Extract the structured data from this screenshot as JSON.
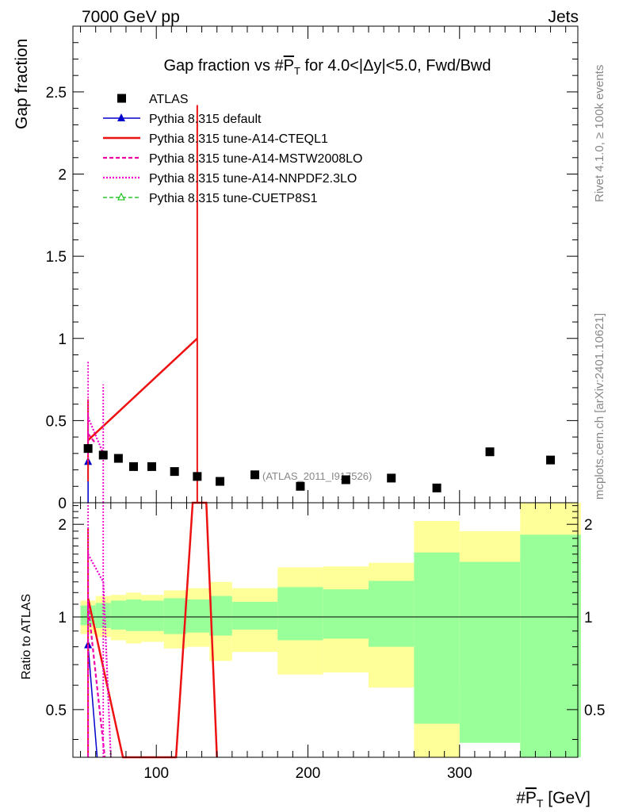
{
  "header": {
    "left": "7000 GeV pp",
    "right": "Jets"
  },
  "side_labels": {
    "rivet": "Rivet 4.1.0, ≥ 100k events",
    "mcplots": "mcplots.cern.ch [arXiv:2401.10621]"
  },
  "chart_data": {
    "type": "scatter",
    "title": "Gap fraction vs #P̅T for 4.0<|Δy|<5.0, Fwd/Bwd",
    "title_parts": {
      "pre": "Gap fraction vs #",
      "p": "P",
      "t": "T",
      "post": " for 4.0<|Δy|<5.0, Fwd/Bwd"
    },
    "xlabel": "#P̅T [GeV]",
    "xlabel_parts": {
      "pre": "#",
      "p": "P",
      "t": "T",
      "post": " [GeV]"
    },
    "ylabel": "Gap fraction",
    "ratio_ylabel": "Ratio to ATLAS",
    "xlim": [
      45,
      378
    ],
    "ylim": [
      0,
      2.9
    ],
    "ratio_ylim": [
      0.35,
      2.35
    ],
    "x_ticks": [
      100,
      200,
      300
    ],
    "y_ticks": [
      0,
      0.5,
      1,
      1.5,
      2,
      2.5
    ],
    "y_tick_labels": [
      "0",
      "0.5",
      "1",
      "1.5",
      "2",
      "2.5"
    ],
    "ratio_ticks": [
      0.5,
      1,
      2
    ],
    "ratio_tick_labels": [
      "0.5",
      "1",
      "2"
    ],
    "watermark": "(ATLAS_2011_I917526)",
    "legend": [
      "ATLAS",
      "Pythia 8.315 default",
      "Pythia 8.315 tune-A14-CTEQL1",
      "Pythia 8.315 tune-A14-MSTW2008LO",
      "Pythia 8.315 tune-A14-NNPDF2.3LO",
      "Pythia 8.315 tune-CUETP8S1"
    ],
    "colors": {
      "data": "#000000",
      "default": "#0000cc",
      "cteql1": "#ee1111",
      "mstw": "#ee00aa",
      "nnpdf": "#ee00cc",
      "cuetp": "#00bb00",
      "band_inner": "#99ff99",
      "band_outer": "#ffff99"
    },
    "data_points": {
      "x": [
        55,
        65,
        75,
        85,
        97,
        112,
        127,
        142,
        165,
        195,
        225,
        255,
        285,
        320,
        360
      ],
      "y": [
        0.33,
        0.29,
        0.27,
        0.22,
        0.22,
        0.19,
        0.16,
        0.13,
        0.17,
        0.1,
        0.14,
        0.15,
        0.09,
        0.31,
        0.26
      ]
    },
    "bins": [
      {
        "lo": 50,
        "hi": 60,
        "inner": [
          0.94,
          1.09
        ],
        "outer": [
          0.88,
          1.13
        ]
      },
      {
        "lo": 60,
        "hi": 70,
        "inner": [
          0.92,
          1.11
        ],
        "outer": [
          0.86,
          1.17
        ]
      },
      {
        "lo": 70,
        "hi": 80,
        "inner": [
          0.91,
          1.13
        ],
        "outer": [
          0.84,
          1.18
        ]
      },
      {
        "lo": 80,
        "hi": 90,
        "inner": [
          0.9,
          1.14
        ],
        "outer": [
          0.82,
          1.2
        ]
      },
      {
        "lo": 90,
        "hi": 105,
        "inner": [
          0.9,
          1.13
        ],
        "outer": [
          0.83,
          1.18
        ]
      },
      {
        "lo": 105,
        "hi": 120,
        "inner": [
          0.88,
          1.15
        ],
        "outer": [
          0.79,
          1.22
        ]
      },
      {
        "lo": 120,
        "hi": 135,
        "inner": [
          0.89,
          1.14
        ],
        "outer": [
          0.8,
          1.24
        ]
      },
      {
        "lo": 135,
        "hi": 150,
        "inner": [
          0.87,
          1.17
        ],
        "outer": [
          0.72,
          1.3
        ]
      },
      {
        "lo": 150,
        "hi": 180,
        "inner": [
          0.91,
          1.12
        ],
        "outer": [
          0.77,
          1.24
        ]
      },
      {
        "lo": 180,
        "hi": 210,
        "inner": [
          0.84,
          1.25
        ],
        "outer": [
          0.65,
          1.45
        ]
      },
      {
        "lo": 210,
        "hi": 240,
        "inner": [
          0.85,
          1.23
        ],
        "outer": [
          0.66,
          1.46
        ]
      },
      {
        "lo": 240,
        "hi": 270,
        "inner": [
          0.8,
          1.31
        ],
        "outer": [
          0.59,
          1.5
        ]
      },
      {
        "lo": 270,
        "hi": 300,
        "inner": [
          0.45,
          1.62
        ],
        "outer": [
          0.3,
          2.05
        ]
      },
      {
        "lo": 300,
        "hi": 340,
        "inner": [
          0.39,
          1.51
        ],
        "outer": [
          0.59,
          1.9
        ]
      },
      {
        "lo": 340,
        "hi": 380,
        "inner": [
          0.3,
          1.85
        ],
        "outer": [
          0.3,
          2.4
        ]
      }
    ],
    "series": [
      {
        "name": "Pythia 8.315 default",
        "key": "default",
        "main": {
          "x": [
            55,
            55
          ],
          "y": [
            0,
            0.25
          ],
          "errors": [
            {
              "x": 55,
              "lo": 0,
              "hi": 0.31
            }
          ],
          "markers": [
            [
              55,
              0.25
            ]
          ]
        },
        "ratio": {
          "x": [
            55,
            61
          ],
          "y": [
            0.81,
            0.3
          ],
          "markers": [
            [
              55,
              0.81
            ]
          ]
        }
      },
      {
        "name": "Pythia 8.315 tune-A14-CTEQL1",
        "key": "cteql1",
        "main": {
          "x": [
            55,
            127
          ],
          "y": [
            0.38,
            1.0
          ],
          "errors": [
            {
              "x": 55,
              "lo": 0.13,
              "hi": 0.63
            },
            {
              "x": 127,
              "lo": 0,
              "hi": 2.42
            }
          ]
        },
        "ratio": {
          "x": [
            55,
            78,
            113,
            124,
            133,
            140
          ],
          "y": [
            1.15,
            0.3,
            0.3,
            3.2,
            3.2,
            0.3
          ],
          "errors": [
            {
              "x": 55,
              "lo": 0.35,
              "hi": 1.95
            }
          ]
        }
      },
      {
        "name": "Pythia 8.315 tune-A14-MSTW2008LO",
        "key": "mstw",
        "main": {
          "x": [
            55,
            60
          ],
          "y": [
            0.42,
            0.36
          ],
          "errors": [
            {
              "x": 55,
              "lo": 0.3,
              "hi": 0.55
            }
          ]
        },
        "ratio": {
          "x": [
            55,
            66
          ],
          "y": [
            1.1,
            0.3
          ],
          "errors": [
            {
              "x": 55,
              "lo": 0.35,
              "hi": 1.7
            }
          ]
        }
      },
      {
        "name": "Pythia 8.315 tune-A14-NNPDF2.3LO",
        "key": "nnpdf",
        "main": {
          "x": [
            55,
            65
          ],
          "y": [
            0.52,
            0.3
          ],
          "errors": [
            {
              "x": 55,
              "lo": 0.25,
              "hi": 0.86
            },
            {
              "x": 65,
              "lo": 0,
              "hi": 0.72
            }
          ]
        },
        "ratio": {
          "x": [
            55,
            65,
            70
          ],
          "y": [
            1.6,
            1.3,
            0.3
          ],
          "errors": [
            {
              "x": 55,
              "lo": 0.35,
              "hi": 2.4
            },
            {
              "x": 65,
              "lo": 0.35,
              "hi": 2.4
            }
          ]
        }
      },
      {
        "name": "Pythia 8.315 tune-CUETP8S1",
        "key": "cuetp",
        "main": {
          "x": [],
          "y": []
        },
        "ratio": {
          "x": [],
          "y": []
        }
      }
    ]
  }
}
